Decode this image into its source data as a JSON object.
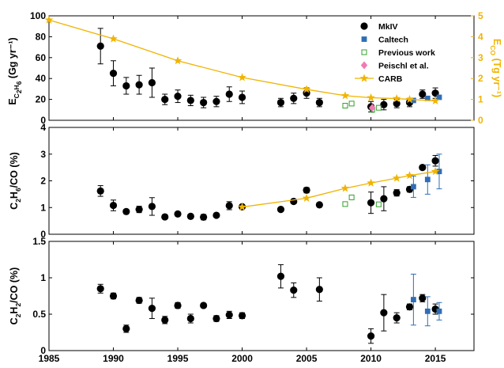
{
  "colors": {
    "mkiv": "#000000",
    "caltech": "#2f6eb5",
    "previous": "#33a02c",
    "peischl": "#f07ab4",
    "carb": "#f0b400"
  },
  "chart_data": [
    {
      "type": "scatter",
      "ylabel_main": "E",
      "ylabel_sub": "C2H6",
      "ylabel_units": "(Gg yr⁻¹)",
      "y2label": "E",
      "y2label_sub": "CO",
      "y2label_units": "(Tg yr⁻¹)",
      "xlim": [
        1985,
        2018
      ],
      "ylim": [
        0,
        100
      ],
      "y2lim": [
        0,
        5
      ],
      "yticks": [
        "0",
        "20",
        "40",
        "60",
        "80",
        "100"
      ],
      "y2ticks": [
        "0",
        "1",
        "2",
        "3",
        "4",
        "5"
      ],
      "legend_position": "top-right",
      "legend": [
        "MkIV",
        "Caltech",
        "Previous work",
        "Peischl et al.",
        "CARB"
      ],
      "series": [
        {
          "name": "MkIV",
          "marker": "circle",
          "points": [
            {
              "x": 1989,
              "y": 71,
              "err": 17
            },
            {
              "x": 1990,
              "y": 45,
              "err": 12
            },
            {
              "x": 1991,
              "y": 33,
              "err": 8
            },
            {
              "x": 1992,
              "y": 34,
              "err": 9
            },
            {
              "x": 1993,
              "y": 36,
              "err": 14
            },
            {
              "x": 1994,
              "y": 20,
              "err": 5
            },
            {
              "x": 1995,
              "y": 23,
              "err": 6
            },
            {
              "x": 1996,
              "y": 19,
              "err": 5
            },
            {
              "x": 1997,
              "y": 17,
              "err": 5
            },
            {
              "x": 1998,
              "y": 18,
              "err": 5
            },
            {
              "x": 1999,
              "y": 25,
              "err": 7
            },
            {
              "x": 2000,
              "y": 22,
              "err": 6
            },
            {
              "x": 2003,
              "y": 17,
              "err": 4
            },
            {
              "x": 2004,
              "y": 21,
              "err": 5
            },
            {
              "x": 2005,
              "y": 26,
              "err": 5
            },
            {
              "x": 2006,
              "y": 17,
              "err": 4
            },
            {
              "x": 2010,
              "y": 13,
              "err": 5
            },
            {
              "x": 2011,
              "y": 15,
              "err": 5
            },
            {
              "x": 2012,
              "y": 16,
              "err": 4
            },
            {
              "x": 2013,
              "y": 17,
              "err": 4
            },
            {
              "x": 2014,
              "y": 25,
              "err": 4
            },
            {
              "x": 2015,
              "y": 26,
              "err": 5
            }
          ]
        },
        {
          "name": "Caltech",
          "marker": "square",
          "points": [
            {
              "x": 2013.3,
              "y": 19
            },
            {
              "x": 2014.4,
              "y": 21
            },
            {
              "x": 2015.3,
              "y": 22
            }
          ]
        },
        {
          "name": "Previous work",
          "marker": "open-square",
          "points": [
            {
              "x": 2008,
              "y": 14
            },
            {
              "x": 2008.5,
              "y": 16
            },
            {
              "x": 2010.1,
              "y": 10
            },
            {
              "x": 2010.6,
              "y": 12
            }
          ]
        },
        {
          "name": "Peischl et al.",
          "marker": "diamond",
          "points": [
            {
              "x": 2010.1,
              "y": 12
            }
          ]
        },
        {
          "name": "CARB",
          "marker": "star",
          "axis": "right",
          "points": [
            {
              "x": 1985,
              "y": 4.8
            },
            {
              "x": 1990,
              "y": 3.9
            },
            {
              "x": 1995,
              "y": 2.85
            },
            {
              "x": 2000,
              "y": 2.05
            },
            {
              "x": 2005,
              "y": 1.48
            },
            {
              "x": 2008,
              "y": 1.18
            },
            {
              "x": 2010,
              "y": 1.08
            },
            {
              "x": 2012,
              "y": 1.04
            },
            {
              "x": 2013,
              "y": 1.0
            },
            {
              "x": 2015,
              "y": 0.93
            }
          ]
        }
      ]
    },
    {
      "type": "scatter",
      "ylabel_parts": [
        "C",
        "2",
        "H",
        "6",
        "/CO (%)"
      ],
      "xlim": [
        1985,
        2018
      ],
      "ylim": [
        0,
        4
      ],
      "yticks": [
        "0",
        "1",
        "2",
        "3",
        "4"
      ],
      "series": [
        {
          "name": "MkIV",
          "marker": "circle",
          "points": [
            {
              "x": 1989,
              "y": 1.62,
              "err": 0.2
            },
            {
              "x": 1990,
              "y": 1.08,
              "err": 0.2
            },
            {
              "x": 1991,
              "y": 0.85,
              "err": 0.07
            },
            {
              "x": 1992,
              "y": 0.93,
              "err": 0.12
            },
            {
              "x": 1993,
              "y": 1.04,
              "err": 0.33
            },
            {
              "x": 1994,
              "y": 0.65,
              "err": 0.07
            },
            {
              "x": 1995,
              "y": 0.76,
              "err": 0.07
            },
            {
              "x": 1996,
              "y": 0.67,
              "err": 0.06
            },
            {
              "x": 1997,
              "y": 0.64,
              "err": 0.1
            },
            {
              "x": 1998,
              "y": 0.71,
              "err": 0.05
            },
            {
              "x": 1999,
              "y": 1.07,
              "err": 0.15
            },
            {
              "x": 2000,
              "y": 1.03,
              "err": 0.08
            },
            {
              "x": 2003,
              "y": 0.93,
              "err": 0.07
            },
            {
              "x": 2004,
              "y": 1.23,
              "err": 0.08
            },
            {
              "x": 2005,
              "y": 1.65,
              "err": 0.1
            },
            {
              "x": 2006,
              "y": 1.1,
              "err": 0.07
            },
            {
              "x": 2010,
              "y": 1.18,
              "err": 0.4
            },
            {
              "x": 2011,
              "y": 1.33,
              "err": 0.45
            },
            {
              "x": 2012,
              "y": 1.55,
              "err": 0.12
            },
            {
              "x": 2013,
              "y": 1.68,
              "err": 0.1
            },
            {
              "x": 2014,
              "y": 2.5,
              "err": 0.08
            },
            {
              "x": 2015,
              "y": 2.75,
              "err": 0.2
            }
          ]
        },
        {
          "name": "Caltech",
          "marker": "square",
          "points": [
            {
              "x": 2013.3,
              "y": 1.78,
              "err": 0.4
            },
            {
              "x": 2014.4,
              "y": 2.05,
              "err": 0.55
            },
            {
              "x": 2015.3,
              "y": 2.35,
              "err": 0.65
            }
          ]
        },
        {
          "name": "Previous work",
          "marker": "open-square",
          "points": [
            {
              "x": 2008,
              "y": 1.13
            },
            {
              "x": 2008.5,
              "y": 1.38
            },
            {
              "x": 2010.6,
              "y": 1.12
            }
          ]
        },
        {
          "name": "CARB",
          "marker": "star",
          "points": [
            {
              "x": 2000,
              "y": 1.02
            },
            {
              "x": 2005,
              "y": 1.35
            },
            {
              "x": 2008,
              "y": 1.72
            },
            {
              "x": 2010,
              "y": 1.92
            },
            {
              "x": 2012,
              "y": 2.1
            },
            {
              "x": 2013,
              "y": 2.2
            },
            {
              "x": 2015,
              "y": 2.35
            }
          ]
        }
      ]
    },
    {
      "type": "scatter",
      "ylabel_parts": [
        "C",
        "2",
        "H",
        "2",
        "/CO (%)"
      ],
      "xlim": [
        1985,
        2018
      ],
      "ylim": [
        0,
        1.5
      ],
      "yticks": [
        "0",
        "0.5",
        "1",
        "1.5"
      ],
      "xticks": [
        "1985",
        "1990",
        "1995",
        "2000",
        "2005",
        "2010",
        "2015"
      ],
      "series": [
        {
          "name": "MkIV",
          "marker": "circle",
          "points": [
            {
              "x": 1989,
              "y": 0.85,
              "err": 0.06
            },
            {
              "x": 1990,
              "y": 0.75,
              "err": 0.04
            },
            {
              "x": 1991,
              "y": 0.3,
              "err": 0.05
            },
            {
              "x": 1992,
              "y": 0.69,
              "err": 0.04
            },
            {
              "x": 1993,
              "y": 0.58,
              "err": 0.14
            },
            {
              "x": 1994,
              "y": 0.42,
              "err": 0.05
            },
            {
              "x": 1995,
              "y": 0.62,
              "err": 0.04
            },
            {
              "x": 1996,
              "y": 0.44,
              "err": 0.06
            },
            {
              "x": 1997,
              "y": 0.62,
              "err": 0.03
            },
            {
              "x": 1998,
              "y": 0.44,
              "err": 0.04
            },
            {
              "x": 1999,
              "y": 0.49,
              "err": 0.05
            },
            {
              "x": 2000,
              "y": 0.48,
              "err": 0.04
            },
            {
              "x": 2003,
              "y": 1.02,
              "err": 0.16
            },
            {
              "x": 2004,
              "y": 0.83,
              "err": 0.1
            },
            {
              "x": 2006,
              "y": 0.84,
              "err": 0.16
            },
            {
              "x": 2010,
              "y": 0.2,
              "err": 0.1
            },
            {
              "x": 2011,
              "y": 0.52,
              "err": 0.25
            },
            {
              "x": 2012,
              "y": 0.45,
              "err": 0.07
            },
            {
              "x": 2013,
              "y": 0.6,
              "err": 0.04
            },
            {
              "x": 2014,
              "y": 0.72,
              "err": 0.05
            },
            {
              "x": 2015,
              "y": 0.57,
              "err": 0.07
            }
          ]
        },
        {
          "name": "Caltech",
          "marker": "square",
          "points": [
            {
              "x": 2013.3,
              "y": 0.7,
              "err": 0.35
            },
            {
              "x": 2014.4,
              "y": 0.54,
              "err": 0.2
            },
            {
              "x": 2015.3,
              "y": 0.54,
              "err": 0.12
            }
          ]
        }
      ]
    }
  ]
}
